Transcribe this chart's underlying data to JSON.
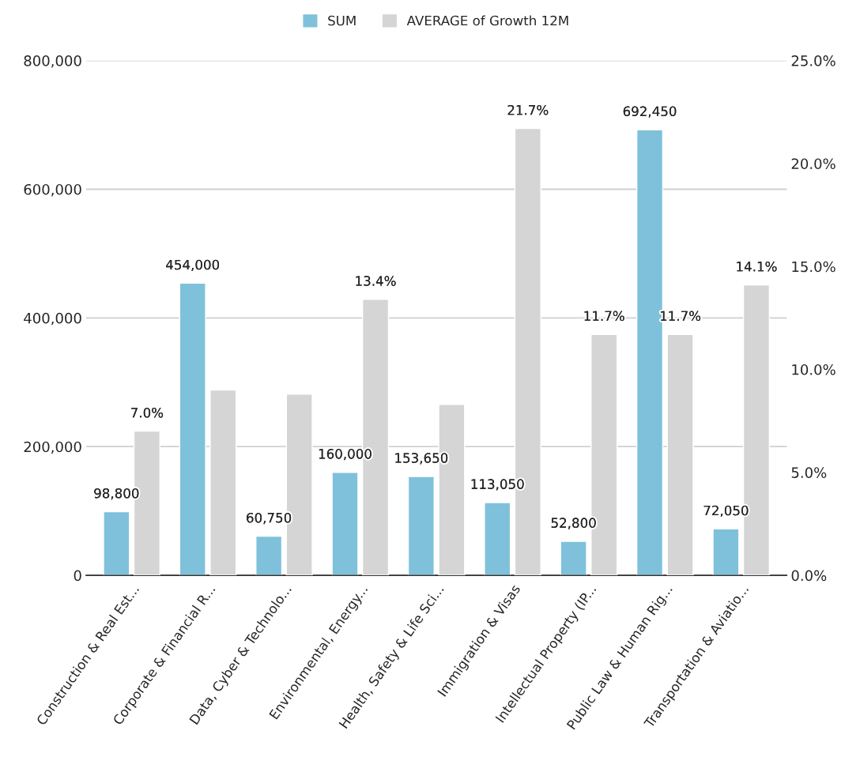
{
  "chart_data": {
    "type": "bar",
    "categories": [
      "Construction & Real Est...",
      "Corporate & Financial R...",
      "Data, Cyber & Technolo...",
      "Environmental, Energy...",
      "Health, Safety & Life Sci...",
      "Immigration & Visas",
      "Intellectual Property (IP...",
      "Public Law & Human Rig...",
      "Transportation & Aviatio..."
    ],
    "series": [
      {
        "name": "SUM",
        "color": "#7fc1db",
        "values": [
          98800,
          454000,
          60750,
          160000,
          153650,
          113050,
          52800,
          692450,
          72050
        ],
        "value_labels": [
          "98,800",
          "454,000",
          "60,750",
          "160,000",
          "153,650",
          "113,050",
          "52,800",
          "692,450",
          "72,050"
        ]
      },
      {
        "name": "AVERAGE of Growth 12M",
        "color": "#d5d5d5",
        "axis": "y2",
        "values": [
          7.0,
          9.0,
          8.8,
          13.4,
          8.3,
          21.7,
          11.7,
          11.7,
          14.1
        ],
        "value_labels": [
          "7.0%",
          null,
          null,
          "13.4%",
          null,
          "21.7%",
          "11.7%",
          "11.7%",
          "14.1%"
        ]
      }
    ],
    "ylim": [
      0,
      800000
    ],
    "yticks": [
      {
        "value": 0,
        "label": "0"
      },
      {
        "value": 200000,
        "label": "200,000"
      },
      {
        "value": 400000,
        "label": "400,000"
      },
      {
        "value": 600000,
        "label": "600,000"
      },
      {
        "value": 800000,
        "label": "800,000"
      }
    ],
    "y2lim": [
      0,
      25
    ],
    "y2ticks": [
      {
        "value": 0,
        "label": "0.0%"
      },
      {
        "value": 5,
        "label": "5.0%"
      },
      {
        "value": 10,
        "label": "10.0%"
      },
      {
        "value": 15,
        "label": "15.0%"
      },
      {
        "value": 20,
        "label": "20.0%"
      },
      {
        "value": 25,
        "label": "25.0%"
      }
    ],
    "grid": "y",
    "legend": "top"
  }
}
